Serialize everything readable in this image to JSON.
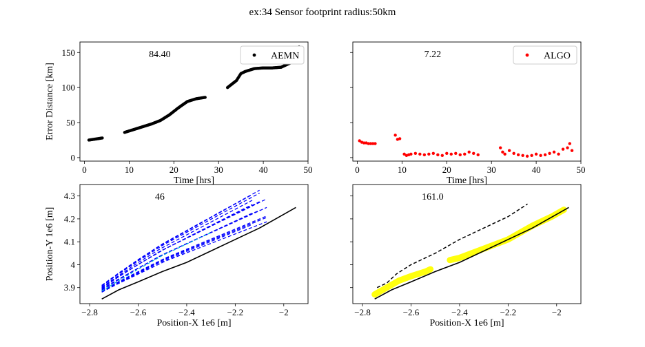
{
  "figure": {
    "suptitle": "ex:34  Sensor footprint radius:50km"
  },
  "chart_data": [
    {
      "type": "scatter",
      "xlabel": "Time [hrs]",
      "ylabel": "Error Distance [km]",
      "xlim": [
        -1,
        50
      ],
      "ylim": [
        -5,
        165
      ],
      "xticks": [
        0,
        10,
        20,
        30,
        40,
        50
      ],
      "yticks": [
        0,
        50,
        100,
        150
      ],
      "annotation": "84.40",
      "legend": "upper right",
      "series": [
        {
          "name": "AEMN",
          "color": "#000000",
          "segments": [
            [
              [
                1,
                25
              ],
              [
                2,
                26
              ],
              [
                3,
                27
              ],
              [
                4,
                28
              ]
            ],
            [
              [
                9,
                36
              ],
              [
                11,
                40
              ],
              [
                13,
                44
              ],
              [
                15,
                48
              ],
              [
                17,
                53
              ],
              [
                19,
                61
              ],
              [
                21,
                71
              ],
              [
                23,
                80
              ],
              [
                25,
                84
              ],
              [
                27,
                86
              ]
            ],
            [
              [
                32,
                100
              ],
              [
                34,
                110
              ],
              [
                35,
                120
              ],
              [
                36,
                123
              ],
              [
                38,
                127
              ],
              [
                40,
                128
              ],
              [
                42,
                128
              ],
              [
                44,
                129
              ],
              [
                46,
                135
              ],
              [
                47,
                145
              ],
              [
                48,
                158
              ]
            ]
          ]
        }
      ]
    },
    {
      "type": "scatter",
      "xlabel": "Time [hrs]",
      "ylabel": "",
      "xlim": [
        -1,
        50
      ],
      "ylim": [
        -5,
        165
      ],
      "xticks": [
        0,
        10,
        20,
        30,
        40,
        50
      ],
      "yticks": [
        0,
        50,
        100,
        150
      ],
      "annotation": "7.22",
      "legend": "upper right",
      "series": [
        {
          "name": "ALGO",
          "color": "#ff0000",
          "points": [
            [
              0.5,
              24
            ],
            [
              1,
              22
            ],
            [
              1.5,
              21
            ],
            [
              2,
              21
            ],
            [
              2.5,
              20
            ],
            [
              3,
              20
            ],
            [
              3.5,
              20
            ],
            [
              4,
              20
            ],
            [
              8.5,
              32
            ],
            [
              9,
              26
            ],
            [
              9.5,
              27
            ],
            [
              10.5,
              5
            ],
            [
              11,
              3
            ],
            [
              11.5,
              4
            ],
            [
              12,
              5
            ],
            [
              13,
              6
            ],
            [
              14,
              5
            ],
            [
              15,
              4
            ],
            [
              16,
              5
            ],
            [
              17,
              6
            ],
            [
              18,
              4
            ],
            [
              19,
              3
            ],
            [
              20,
              6
            ],
            [
              21,
              5
            ],
            [
              22,
              6
            ],
            [
              23,
              4
            ],
            [
              24,
              5
            ],
            [
              25,
              8
            ],
            [
              26,
              6
            ],
            [
              27,
              4
            ],
            [
              32,
              14
            ],
            [
              32.5,
              8
            ],
            [
              33,
              5
            ],
            [
              34,
              10
            ],
            [
              35,
              6
            ],
            [
              36,
              4
            ],
            [
              37,
              3
            ],
            [
              38,
              2
            ],
            [
              39,
              3
            ],
            [
              40,
              5
            ],
            [
              41,
              3
            ],
            [
              42,
              4
            ],
            [
              43,
              6
            ],
            [
              44,
              8
            ],
            [
              45,
              5
            ],
            [
              46,
              12
            ],
            [
              47,
              14
            ],
            [
              47.5,
              20
            ],
            [
              48,
              10
            ]
          ]
        }
      ]
    },
    {
      "type": "line",
      "xlabel": "Position-X 1e6 [m]",
      "ylabel": "Position-Y 1e6 [m]",
      "xlim": [
        -2.84,
        -1.9
      ],
      "ylim": [
        3.83,
        4.35
      ],
      "xticks": [
        -2.8,
        -2.6,
        -2.4,
        -2.2,
        -2.0
      ],
      "yticks": [
        3.9,
        4.0,
        4.1,
        4.2,
        4.3
      ],
      "annotation": "46",
      "truth": [
        [
          -2.75,
          3.85
        ],
        [
          -2.68,
          3.89
        ],
        [
          -2.6,
          3.925
        ],
        [
          -2.5,
          3.97
        ],
        [
          -2.4,
          4.01
        ],
        [
          -2.3,
          4.06
        ],
        [
          -2.2,
          4.11
        ],
        [
          -2.1,
          4.16
        ],
        [
          -2.0,
          4.22
        ],
        [
          -1.95,
          4.25
        ]
      ],
      "ensemble_color": "#0000ff",
      "ensemble_mean_color": "#00bcd4",
      "ensemble_base": [
        [
          -2.75,
          3.895
        ],
        [
          -2.68,
          3.94
        ],
        [
          -2.6,
          3.99
        ],
        [
          -2.5,
          4.05
        ],
        [
          -2.4,
          4.1
        ],
        [
          -2.3,
          4.15
        ],
        [
          -2.2,
          4.2
        ],
        [
          -2.1,
          4.25
        ]
      ],
      "ensemble_offsets": [
        -0.06,
        -0.045,
        -0.03,
        -0.02,
        -0.01,
        0.0,
        0.01,
        0.02,
        0.03,
        0.045,
        0.06,
        -0.035,
        0.025,
        0.05,
        -0.05
      ]
    },
    {
      "type": "line",
      "xlabel": "Position-X 1e6 [m]",
      "ylabel": "",
      "xlim": [
        -2.84,
        -1.9
      ],
      "ylim": [
        3.83,
        4.35
      ],
      "xticks": [
        -2.8,
        -2.6,
        -2.4,
        -2.2,
        -2.0
      ],
      "yticks": [
        3.9,
        4.0,
        4.1,
        4.2,
        4.3
      ],
      "annotation": "161.0",
      "truth": [
        [
          -2.75,
          3.85
        ],
        [
          -2.68,
          3.89
        ],
        [
          -2.6,
          3.925
        ],
        [
          -2.5,
          3.97
        ],
        [
          -2.4,
          4.01
        ],
        [
          -2.3,
          4.06
        ],
        [
          -2.2,
          4.11
        ],
        [
          -2.1,
          4.16
        ],
        [
          -2.0,
          4.22
        ],
        [
          -1.95,
          4.25
        ]
      ],
      "estimate": [
        [
          -2.74,
          3.9
        ],
        [
          -2.7,
          3.92
        ],
        [
          -2.66,
          3.96
        ],
        [
          -2.6,
          4.0
        ],
        [
          -2.5,
          4.05
        ],
        [
          -2.4,
          4.11
        ],
        [
          -2.3,
          4.16
        ],
        [
          -2.2,
          4.21
        ],
        [
          -2.12,
          4.265
        ]
      ],
      "highlight": [
        [
          -2.75,
          3.87
        ],
        [
          -2.7,
          3.9
        ],
        [
          -2.65,
          3.93
        ],
        [
          -2.6,
          3.95
        ],
        [
          -2.54,
          3.97
        ],
        [
          -2.52,
          3.98
        ]
      ],
      "highlight2": [
        [
          -2.44,
          4.02
        ],
        [
          -2.4,
          4.03
        ],
        [
          -2.3,
          4.07
        ],
        [
          -2.2,
          4.11
        ],
        [
          -2.1,
          4.17
        ],
        [
          -2.02,
          4.21
        ],
        [
          -1.97,
          4.24
        ]
      ],
      "highlight_color": "#ffff00"
    }
  ]
}
